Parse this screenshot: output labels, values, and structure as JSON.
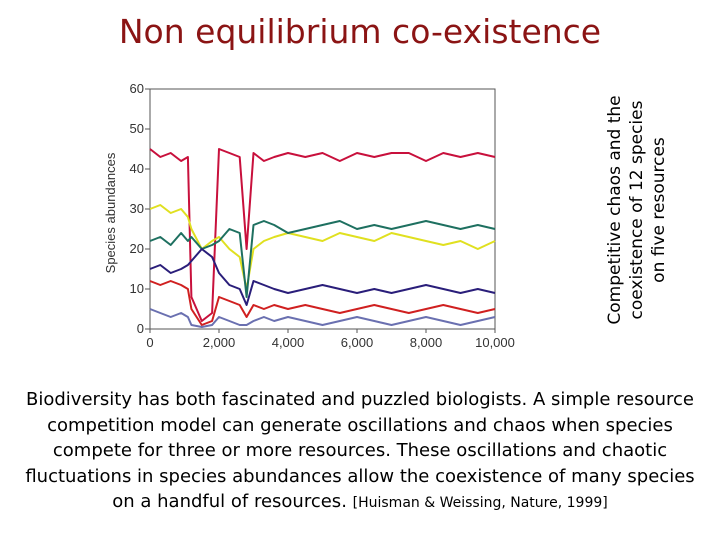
{
  "slide": {
    "title": "Non equilibrium co-existence",
    "side_caption": "Competitive chaos and the coexistence of 12 species on five resources",
    "body": "Biodiversity has both fascinated and puzzled biologists.  A simple resource competition model can generate oscillations and chaos when species compete for three or more resources. These oscillations and chaotic fluctuations in species abundances allow the coexistence of many species on a handful of resources. ",
    "citation": "[Huisman & Weissing, Nature, 1999]"
  },
  "chart_data": {
    "type": "line",
    "title": "",
    "xlabel": "",
    "ylabel": "Species abundances",
    "xlim": [
      0,
      10000
    ],
    "ylim": [
      0,
      60
    ],
    "xticks": [
      0,
      2000,
      4000,
      6000,
      8000,
      10000
    ],
    "xtick_labels": [
      "0",
      "2,000",
      "4,000",
      "6,000",
      "8,000",
      "10,000"
    ],
    "yticks": [
      0,
      10,
      20,
      30,
      40,
      50,
      60
    ],
    "ytick_labels": [
      "0",
      "10",
      "20",
      "30",
      "40",
      "50",
      "60"
    ],
    "grid": false,
    "legend": "none",
    "series": [
      {
        "color": "#c8103c",
        "x": [
          0,
          300,
          600,
          900,
          1100,
          1200,
          1500,
          1800,
          2000,
          2300,
          2600,
          2800,
          3000,
          3300,
          3600,
          4000,
          4500,
          5000,
          5500,
          6000,
          6500,
          7000,
          7500,
          8000,
          8500,
          9000,
          9500,
          10000
        ],
        "y": [
          45,
          43,
          44,
          42,
          43,
          8,
          2,
          4,
          45,
          44,
          43,
          20,
          44,
          42,
          43,
          44,
          43,
          44,
          42,
          44,
          43,
          44,
          44,
          42,
          44,
          43,
          44,
          43
        ]
      },
      {
        "color": "#e0e020",
        "x": [
          0,
          300,
          600,
          900,
          1100,
          1200,
          1500,
          1800,
          2000,
          2300,
          2600,
          2800,
          3000,
          3300,
          3600,
          4000,
          4500,
          5000,
          5500,
          6000,
          6500,
          7000,
          7500,
          8000,
          8500,
          9000,
          9500,
          10000
        ],
        "y": [
          30,
          31,
          29,
          30,
          28,
          25,
          20,
          22,
          23,
          20,
          18,
          10,
          20,
          22,
          23,
          24,
          23,
          22,
          24,
          23,
          22,
          24,
          23,
          22,
          21,
          22,
          20,
          22
        ]
      },
      {
        "color": "#1e7060",
        "x": [
          0,
          300,
          600,
          900,
          1100,
          1200,
          1500,
          1800,
          2000,
          2300,
          2600,
          2800,
          3000,
          3300,
          3600,
          4000,
          4500,
          5000,
          5500,
          6000,
          6500,
          7000,
          7500,
          8000,
          8500,
          9000,
          9500,
          10000
        ],
        "y": [
          22,
          23,
          21,
          24,
          22,
          23,
          20,
          21,
          22,
          25,
          24,
          8,
          26,
          27,
          26,
          24,
          25,
          26,
          27,
          25,
          26,
          25,
          26,
          27,
          26,
          25,
          26,
          25
        ]
      },
      {
        "color": "#2a1e7a",
        "x": [
          0,
          300,
          600,
          900,
          1100,
          1200,
          1500,
          1800,
          2000,
          2300,
          2600,
          2800,
          3000,
          3300,
          3600,
          4000,
          4500,
          5000,
          5500,
          6000,
          6500,
          7000,
          7500,
          8000,
          8500,
          9000,
          9500,
          10000
        ],
        "y": [
          15,
          16,
          14,
          15,
          16,
          17,
          20,
          18,
          14,
          11,
          10,
          6,
          12,
          11,
          10,
          9,
          10,
          11,
          10,
          9,
          10,
          9,
          10,
          11,
          10,
          9,
          10,
          9
        ]
      },
      {
        "color": "#d02020",
        "x": [
          0,
          300,
          600,
          900,
          1100,
          1200,
          1500,
          1800,
          2000,
          2300,
          2600,
          2800,
          3000,
          3300,
          3600,
          4000,
          4500,
          5000,
          5500,
          6000,
          6500,
          7000,
          7500,
          8000,
          8500,
          9000,
          9500,
          10000
        ],
        "y": [
          12,
          11,
          12,
          11,
          10,
          5,
          1,
          2,
          8,
          7,
          6,
          3,
          6,
          5,
          6,
          5,
          6,
          5,
          4,
          5,
          6,
          5,
          4,
          5,
          6,
          5,
          4,
          5
        ]
      },
      {
        "color": "#6a70b0",
        "x": [
          0,
          300,
          600,
          900,
          1100,
          1200,
          1500,
          1800,
          2000,
          2300,
          2600,
          2800,
          3000,
          3300,
          3600,
          4000,
          4500,
          5000,
          5500,
          6000,
          6500,
          7000,
          7500,
          8000,
          8500,
          9000,
          9500,
          10000
        ],
        "y": [
          5,
          4,
          3,
          4,
          3,
          1,
          0.5,
          1,
          3,
          2,
          1,
          1,
          2,
          3,
          2,
          3,
          2,
          1,
          2,
          3,
          2,
          1,
          2,
          3,
          2,
          1,
          2,
          3
        ]
      }
    ]
  }
}
